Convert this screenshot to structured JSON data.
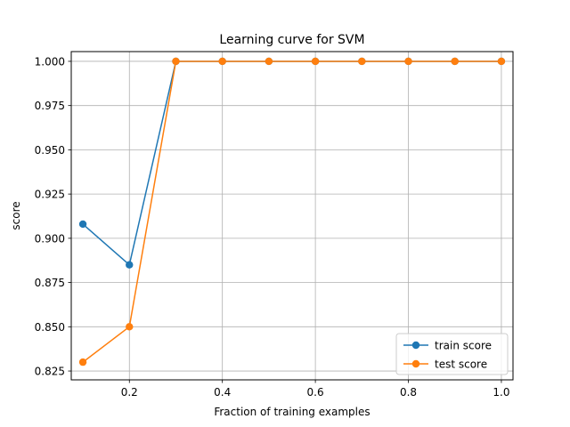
{
  "chart_data": {
    "type": "line",
    "title": "Learning curve for SVM",
    "xlabel": "Fraction of training examples",
    "ylabel": "score",
    "xlim": [
      0.075,
      1.025
    ],
    "ylim": [
      0.82,
      1.0055
    ],
    "xticks": [
      0.2,
      0.4,
      0.6,
      0.8,
      1.0
    ],
    "xtick_labels": [
      "0.2",
      "0.4",
      "0.6",
      "0.8",
      "1.0"
    ],
    "yticks": [
      0.825,
      0.85,
      0.875,
      0.9,
      0.925,
      0.95,
      0.975,
      1.0
    ],
    "ytick_labels": [
      "0.825",
      "0.850",
      "0.875",
      "0.900",
      "0.925",
      "0.950",
      "0.975",
      "1.000"
    ],
    "grid": true,
    "legend_position": "bottom-right",
    "x": [
      0.1,
      0.2,
      0.3,
      0.4,
      0.5,
      0.6,
      0.7,
      0.8,
      0.9,
      1.0
    ],
    "series": [
      {
        "name": "train score",
        "color": "#1f77b4",
        "marker": "circle",
        "values": [
          0.908,
          0.885,
          1.0,
          1.0,
          1.0,
          1.0,
          1.0,
          1.0,
          1.0,
          1.0
        ]
      },
      {
        "name": "test score",
        "color": "#ff7f0e",
        "marker": "circle",
        "values": [
          0.83,
          0.85,
          1.0,
          1.0,
          1.0,
          1.0,
          1.0,
          1.0,
          1.0,
          1.0
        ]
      }
    ]
  }
}
